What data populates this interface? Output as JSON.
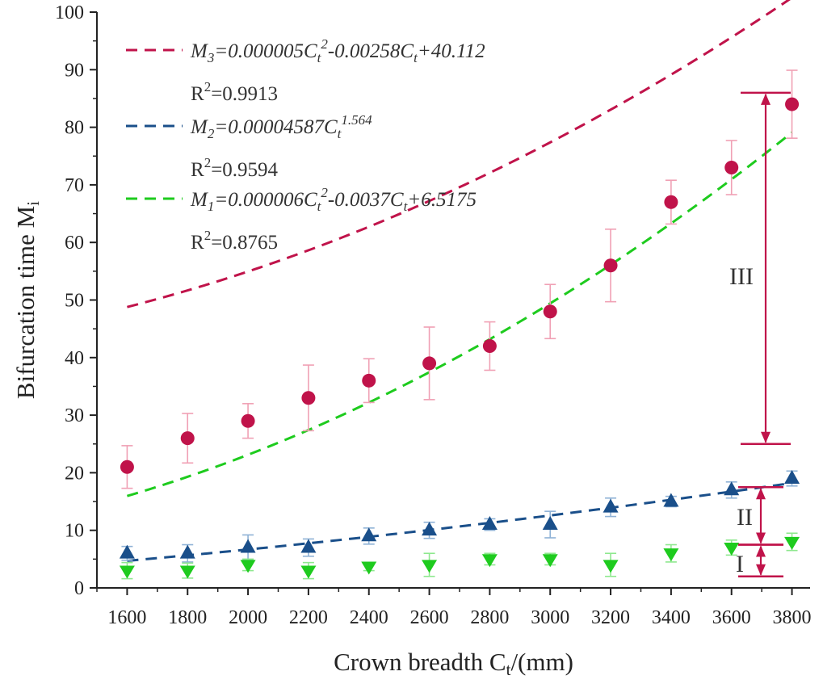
{
  "chart_data": {
    "type": "scatter",
    "title": "",
    "xlabel": {
      "main": "Crown breadth C",
      "sub": "t",
      "tail": "/(mm)"
    },
    "ylabel": {
      "main": "Bifurcation time M",
      "sub": "i"
    },
    "xlim": [
      1500,
      3860
    ],
    "ylim": [
      0,
      100
    ],
    "x_ticks": [
      1600,
      1800,
      2000,
      2200,
      2400,
      2600,
      2800,
      3000,
      3200,
      3400,
      3600,
      3800
    ],
    "y_ticks": [
      0,
      10,
      20,
      30,
      40,
      50,
      60,
      70,
      80,
      90,
      100
    ],
    "grid": false,
    "legend_position": "top-left",
    "series": [
      {
        "key": "M3",
        "marker": "circle",
        "color": "#c0134a",
        "errorbar_color": "#f0a0b4",
        "x": [
          1600,
          1800,
          2000,
          2200,
          2400,
          2600,
          2800,
          3000,
          3200,
          3400,
          3600,
          3800
        ],
        "y": [
          21,
          26,
          29,
          33,
          36,
          39,
          42,
          48,
          56,
          67,
          73,
          84
        ],
        "err": [
          3.7,
          4.3,
          3.0,
          5.7,
          3.8,
          6.3,
          4.2,
          4.7,
          6.3,
          3.8,
          4.7,
          5.9
        ],
        "fit": {
          "form": "poly2",
          "a": 5e-06,
          "b": -0.00258,
          "c": 40.112
        },
        "legend": {
          "eq": [
            {
              "t": "M"
            },
            {
              "t": "3",
              "sub": true
            },
            {
              "t": "=0.000005C"
            },
            {
              "t": "t",
              "sub": true
            },
            {
              "t": "2",
              "sup": true
            },
            {
              "t": "-0.00258C"
            },
            {
              "t": "t",
              "sub": true
            },
            {
              "t": "+40.112"
            }
          ],
          "r2_prefix": "R",
          "r2_sup": "2",
          "r2_value": "=0.9913"
        }
      },
      {
        "key": "M2",
        "marker": "triangle-up",
        "color": "#1a4f8a",
        "errorbar_color": "#8fb2d6",
        "x": [
          1600,
          1800,
          2000,
          2200,
          2400,
          2600,
          2800,
          3000,
          3200,
          3400,
          3600,
          3800
        ],
        "y": [
          6,
          6,
          7,
          7,
          9,
          10,
          11,
          11,
          14,
          15,
          17,
          19
        ],
        "err": [
          1.2,
          1.5,
          2.2,
          1.5,
          1.4,
          1.4,
          1.0,
          2.3,
          1.6,
          0.9,
          1.4,
          1.3
        ],
        "fit": {
          "form": "power",
          "a": 4.587e-05,
          "p": 1.564
        },
        "legend": {
          "eq": [
            {
              "t": "M"
            },
            {
              "t": "2",
              "sub": true
            },
            {
              "t": "=0.00004587C"
            },
            {
              "t": "t",
              "sub": true
            },
            {
              "t": "1.564",
              "sup": true
            }
          ],
          "r2_prefix": "R",
          "r2_sup": "2",
          "r2_value": "=0.9594"
        }
      },
      {
        "key": "M1",
        "marker": "triangle-down",
        "color": "#1ecb1e",
        "errorbar_color": "#8ee88e",
        "x": [
          1600,
          1800,
          2000,
          2200,
          2400,
          2600,
          2800,
          3000,
          3200,
          3400,
          3600,
          3800
        ],
        "y": [
          3,
          3,
          4,
          3,
          3.7,
          4,
          5,
          5,
          4,
          6,
          7,
          8
        ],
        "err": [
          1.4,
          1.3,
          1.0,
          1.4,
          0.7,
          2.0,
          1.0,
          1.0,
          2.0,
          1.5,
          1.3,
          1.5
        ],
        "fit": {
          "form": "poly2",
          "a": 6e-06,
          "b": -0.0037,
          "c": 6.5175
        },
        "legend": {
          "eq": [
            {
              "t": "M"
            },
            {
              "t": "1",
              "sub": true
            },
            {
              "t": "=0.000006C"
            },
            {
              "t": "t",
              "sub": true
            },
            {
              "t": "2",
              "sup": true
            },
            {
              "t": "-0.0037C"
            },
            {
              "t": "t",
              "sub": true
            },
            {
              "t": "+6.5175"
            }
          ],
          "r2_prefix": "R",
          "r2_sup": "2",
          "r2_value": "=0.8765"
        }
      }
    ],
    "annotations": {
      "color": "#c0134a",
      "regions": [
        {
          "label": "III",
          "y_top": 86,
          "y_bottom": 25
        },
        {
          "label": "II",
          "y_top": 17.5,
          "y_bottom": 7.5
        },
        {
          "label": "I",
          "y_top": 7.5,
          "y_bottom": 2
        }
      ]
    }
  }
}
